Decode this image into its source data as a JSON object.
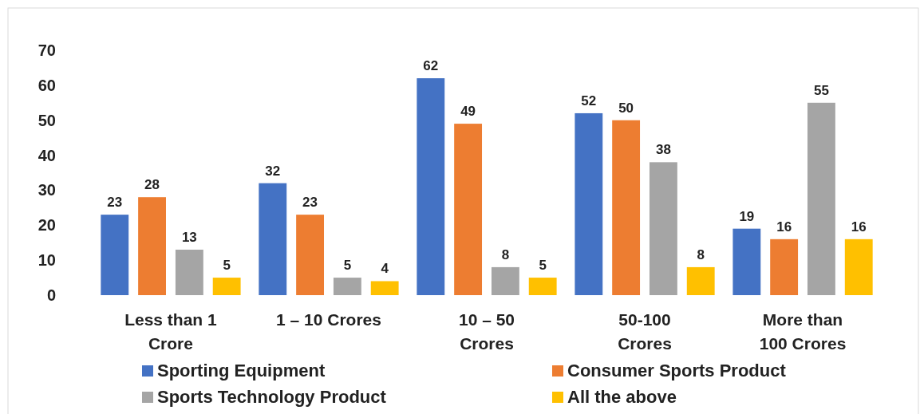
{
  "chart_data": {
    "type": "bar",
    "categories": [
      "Less than 1 Crore",
      "1 – 10 Crores",
      "10 – 50 Crores",
      "50-100 Crores",
      "More than 100 Crores"
    ],
    "series": [
      {
        "name": "Sporting Equipment",
        "color": "#4472c4",
        "values": [
          23,
          32,
          62,
          52,
          19
        ]
      },
      {
        "name": "Consumer Sports Product",
        "color": "#ed7d31",
        "values": [
          28,
          23,
          49,
          50,
          16
        ]
      },
      {
        "name": "Sports Technology Product",
        "color": "#a5a5a5",
        "values": [
          13,
          5,
          8,
          38,
          55
        ]
      },
      {
        "name": "All the above",
        "color": "#ffc000",
        "values": [
          5,
          4,
          5,
          8,
          16
        ]
      }
    ],
    "ylim": [
      0,
      70
    ],
    "yticks": [
      0,
      10,
      20,
      30,
      40,
      50,
      60,
      70
    ],
    "data_labels": true,
    "legend": "bottom",
    "grid": false
  }
}
